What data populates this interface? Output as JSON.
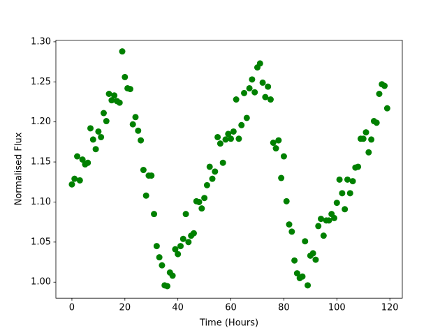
{
  "chart_data": {
    "type": "scatter",
    "x_label": "Time (Hours)",
    "y_label": "Normalised Flux",
    "color": "#008000",
    "x": [
      0,
      1,
      2,
      3,
      4,
      5,
      6,
      7,
      8,
      9,
      10,
      11,
      12,
      13,
      14,
      15,
      16,
      17,
      18,
      19,
      20,
      21,
      22,
      23,
      24,
      25,
      26,
      27,
      28,
      29,
      30,
      31,
      32,
      33,
      34,
      35,
      36,
      37,
      38,
      39,
      40,
      41,
      42,
      43,
      44,
      45,
      46,
      47,
      48,
      49,
      50,
      51,
      52,
      53,
      54,
      55,
      56,
      57,
      58,
      59,
      60,
      61,
      62,
      63,
      64,
      65,
      66,
      67,
      68,
      69,
      70,
      71,
      72,
      73,
      74,
      75,
      76,
      77,
      78,
      79,
      80,
      81,
      82,
      83,
      84,
      85,
      86,
      87,
      88,
      89,
      90,
      91,
      92,
      93,
      94,
      95,
      96,
      97,
      98,
      99,
      100,
      101,
      102,
      103,
      104,
      105,
      106,
      107,
      108,
      109,
      110,
      111,
      112,
      113,
      114,
      115,
      116,
      117,
      118,
      119
    ],
    "values": [
      1.122,
      1.129,
      1.157,
      1.127,
      1.153,
      1.147,
      1.149,
      1.192,
      1.178,
      1.166,
      1.188,
      1.181,
      1.211,
      1.201,
      1.235,
      1.227,
      1.233,
      1.226,
      1.224,
      1.288,
      1.256,
      1.242,
      1.241,
      1.197,
      1.206,
      1.189,
      1.177,
      1.14,
      1.108,
      1.133,
      1.133,
      1.085,
      1.045,
      1.031,
      1.021,
      0.996,
      0.995,
      1.012,
      1.008,
      1.041,
      1.035,
      1.045,
      1.054,
      1.085,
      1.05,
      1.058,
      1.061,
      1.101,
      1.1,
      1.092,
      1.105,
      1.121,
      1.144,
      1.129,
      1.138,
      1.181,
      1.173,
      1.149,
      1.178,
      1.185,
      1.179,
      1.188,
      1.228,
      1.179,
      1.196,
      1.236,
      1.205,
      1.242,
      1.253,
      1.237,
      1.268,
      1.273,
      1.249,
      1.231,
      1.244,
      1.228,
      1.174,
      1.167,
      1.177,
      1.13,
      1.157,
      1.101,
      1.072,
      1.063,
      1.027,
      1.011,
      1.005,
      1.007,
      1.051,
      0.996,
      1.033,
      1.036,
      1.028,
      1.07,
      1.079,
      1.058,
      1.077,
      1.077,
      1.085,
      1.08,
      1.099,
      1.128,
      1.111,
      1.091,
      1.128,
      1.111,
      1.126,
      1.143,
      1.144,
      1.179,
      1.179,
      1.187,
      1.162,
      1.178,
      1.201,
      1.199,
      1.235,
      1.247,
      1.245,
      1.217
    ],
    "xlim": [
      -6.05,
      124.7
    ],
    "ylim": [
      0.98,
      1.302
    ],
    "xticks": [
      0,
      20,
      40,
      60,
      80,
      100,
      120
    ],
    "yticks": [
      {
        "value": 1.0,
        "label": "1.00"
      },
      {
        "value": 1.05,
        "label": "1.05"
      },
      {
        "value": 1.1,
        "label": "1.10"
      },
      {
        "value": 1.15,
        "label": "1.15"
      },
      {
        "value": 1.2,
        "label": "1.20"
      },
      {
        "value": 1.25,
        "label": "1.25"
      },
      {
        "value": 1.3,
        "label": "1.30"
      }
    ],
    "grid": false
  }
}
